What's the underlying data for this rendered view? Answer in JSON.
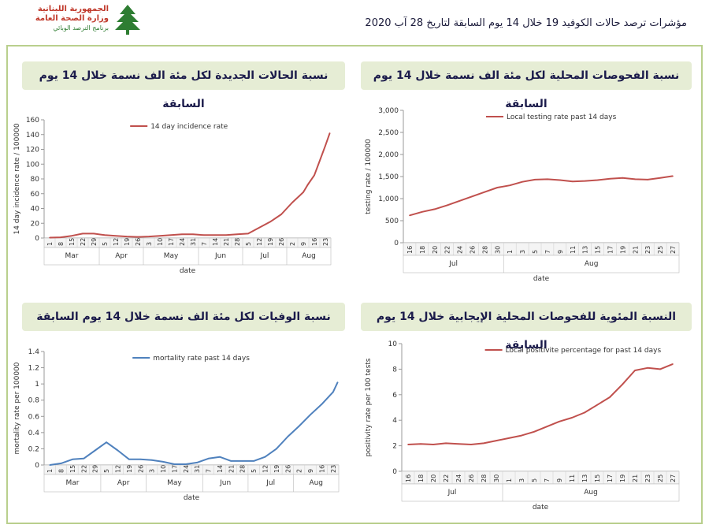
{
  "header": {
    "title": "مؤشرات ترصد حالات الكوفيد 19 خلال  14 يوم السابقة لتاريخ  28 آب 2020",
    "logo_line1": "الجمهورية اللبنانية",
    "logo_line2": "وزارة الصحة العامة",
    "logo_line3": "برنامج الترصد الوبائي"
  },
  "colors": {
    "red_series": "#c0504d",
    "blue_series": "#4f81bd",
    "panel_bg": "#e6edd5",
    "frame": "#b9cf8d"
  },
  "panels": {
    "incidence": {
      "title": "نسبة الحالات الجديدة لكل مئة الف نسمة خلال 14 يوم السابقة"
    },
    "testing": {
      "title": "نسبة الفحوصات المحلية لكل مئة الف نسمة خلال 14 يوم السابقة"
    },
    "mortality": {
      "title": "نسبة الوفيات لكل مئة الف نسمة خلال 14 يوم السابقة"
    },
    "positivity": {
      "title": "النسبة المئوية للفحوصات المحلية الإيجابية خلال 14 يوم السابقة"
    }
  },
  "chart_data": [
    {
      "id": "incidence",
      "type": "line",
      "legend": "14 day incidence rate",
      "ylabel": "14 day incidence rate / 100000",
      "xlabel": "date",
      "ylim": [
        0,
        160
      ],
      "yticks": [
        "0",
        "20",
        "40",
        "60",
        "80",
        "100",
        "120",
        "140",
        "160"
      ],
      "ytick_values": [
        0,
        20,
        40,
        60,
        80,
        100,
        120,
        140,
        160
      ],
      "xticks": [
        "1",
        "8",
        "15",
        "22",
        "29",
        "5",
        "12",
        "19",
        "26",
        "3",
        "10",
        "17",
        "24",
        "31",
        "7",
        "14",
        "21",
        "28",
        "5",
        "12",
        "19",
        "26",
        "2",
        "9",
        "16",
        "23"
      ],
      "months": [
        "Mar",
        "Apr",
        "May",
        "Jun",
        "Jul",
        "Aug"
      ],
      "month_spans": [
        [
          0,
          4
        ],
        [
          5,
          8
        ],
        [
          9,
          13
        ],
        [
          14,
          17
        ],
        [
          18,
          21
        ],
        [
          22,
          25
        ]
      ],
      "x": [
        0,
        1,
        2,
        3,
        4,
        5,
        6,
        7,
        8,
        9,
        10,
        11,
        12,
        13,
        14,
        15,
        16,
        17,
        18,
        19,
        20,
        21,
        22,
        23,
        23.4,
        24,
        24.5,
        25,
        25.4
      ],
      "values": [
        0.5,
        1,
        3,
        6,
        6,
        4,
        3,
        2,
        1.5,
        2,
        3,
        4,
        5,
        5,
        4,
        4,
        4,
        5,
        6,
        14,
        22,
        32,
        48,
        62,
        72,
        85,
        105,
        125,
        142
      ],
      "grid": false,
      "legend_position": "top-center"
    },
    {
      "id": "testing",
      "type": "line",
      "legend": "Local testing rate past 14 days",
      "ylabel": "testing rate / 100000",
      "xlabel": "date",
      "ylim": [
        0,
        3000
      ],
      "yticks": [
        "0",
        "500",
        "1,000",
        "1,500",
        "2,000",
        "2,500",
        "3,000"
      ],
      "ytick_values": [
        0,
        500,
        1000,
        1500,
        2000,
        2500,
        3000
      ],
      "xticks": [
        "16",
        "18",
        "20",
        "22",
        "24",
        "26",
        "28",
        "30",
        "1",
        "3",
        "5",
        "7",
        "9",
        "11",
        "13",
        "15",
        "17",
        "19",
        "21",
        "23",
        "25",
        "27"
      ],
      "months": [
        "Jul",
        "Aug"
      ],
      "month_spans": [
        [
          0,
          7
        ],
        [
          8,
          21
        ]
      ],
      "x": [
        0,
        1,
        2,
        3,
        4,
        5,
        6,
        7,
        8,
        9,
        10,
        11,
        12,
        13,
        14,
        15,
        16,
        17,
        18,
        19,
        20,
        21
      ],
      "values": [
        620,
        700,
        760,
        850,
        950,
        1050,
        1150,
        1250,
        1300,
        1380,
        1430,
        1440,
        1420,
        1390,
        1400,
        1420,
        1450,
        1470,
        1440,
        1430,
        1470,
        1510
      ],
      "grid": false,
      "legend_position": "top-center"
    },
    {
      "id": "mortality",
      "type": "line",
      "legend": "mortality rate past 14 days",
      "ylabel": "mortality rate per 100000",
      "xlabel": "date",
      "ylim": [
        0,
        1.4
      ],
      "yticks": [
        "0",
        "0.2",
        "0.4",
        "0.6",
        "0.8",
        "1",
        "1.2",
        "1.4"
      ],
      "ytick_values": [
        0,
        0.2,
        0.4,
        0.6,
        0.8,
        1,
        1.2,
        1.4
      ],
      "xticks": [
        "1",
        "8",
        "15",
        "22",
        "29",
        "5",
        "12",
        "19",
        "26",
        "3",
        "10",
        "17",
        "24",
        "31",
        "7",
        "14",
        "21",
        "28",
        "5",
        "12",
        "19",
        "26",
        "2",
        "9",
        "16",
        "23"
      ],
      "months": [
        "Mar",
        "Apr",
        "May",
        "Jun",
        "Jul",
        "Aug"
      ],
      "month_spans": [
        [
          0,
          4
        ],
        [
          5,
          8
        ],
        [
          9,
          13
        ],
        [
          14,
          17
        ],
        [
          18,
          21
        ],
        [
          22,
          25
        ]
      ],
      "x": [
        0,
        1,
        2,
        3,
        4,
        5,
        6,
        7,
        8,
        9,
        10,
        11,
        12,
        13,
        14,
        15,
        16,
        17,
        18,
        19,
        20,
        21,
        22,
        23,
        24,
        25,
        25.4
      ],
      "values": [
        0,
        0.02,
        0.07,
        0.08,
        0.18,
        0.28,
        0.18,
        0.07,
        0.07,
        0.06,
        0.04,
        0.01,
        0.01,
        0.03,
        0.08,
        0.1,
        0.05,
        0.05,
        0.05,
        0.1,
        0.2,
        0.35,
        0.48,
        0.62,
        0.75,
        0.9,
        1.02
      ],
      "grid": false,
      "legend_position": "top-center"
    },
    {
      "id": "positivity",
      "type": "line",
      "legend": "Local positivite percentage for past 14 days",
      "ylabel": "positivity rate per 100 tests",
      "xlabel": "date",
      "ylim": [
        0,
        10
      ],
      "yticks": [
        "0",
        "2",
        "4",
        "6",
        "8",
        "10"
      ],
      "ytick_values": [
        0,
        2,
        4,
        6,
        8,
        10
      ],
      "xticks": [
        "16",
        "18",
        "20",
        "22",
        "24",
        "26",
        "28",
        "30",
        "1",
        "3",
        "5",
        "7",
        "9",
        "11",
        "13",
        "15",
        "17",
        "19",
        "21",
        "23",
        "25",
        "27"
      ],
      "months": [
        "Jul",
        "Aug"
      ],
      "month_spans": [
        [
          0,
          7
        ],
        [
          8,
          21
        ]
      ],
      "x": [
        0,
        1,
        2,
        3,
        4,
        5,
        6,
        7,
        8,
        9,
        10,
        11,
        12,
        13,
        14,
        15,
        16,
        17,
        18,
        19,
        20,
        21
      ],
      "values": [
        2.1,
        2.15,
        2.1,
        2.2,
        2.15,
        2.1,
        2.2,
        2.4,
        2.6,
        2.8,
        3.1,
        3.5,
        3.9,
        4.2,
        4.6,
        5.2,
        5.8,
        6.8,
        7.9,
        8.1,
        8.0,
        8.4
      ],
      "grid": false,
      "legend_position": "top-center"
    }
  ]
}
